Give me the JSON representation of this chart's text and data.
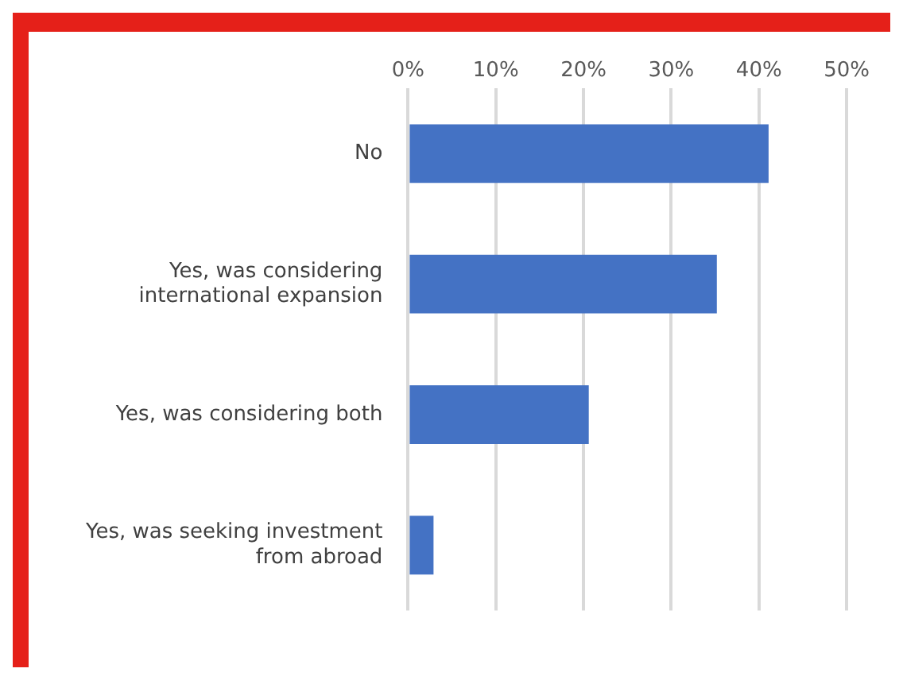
{
  "chart_data": {
    "type": "bar",
    "orientation": "horizontal",
    "categories": [
      "No",
      "Yes, was considering international expansion",
      "Yes, was considering both",
      "Yes, was seeking investment from abroad"
    ],
    "values": [
      41.1,
      35.2,
      20.6,
      2.9
    ],
    "color": "#4472c4",
    "xlim": [
      0,
      50
    ],
    "xticks": [
      {
        "value": 0,
        "label": "0%"
      },
      {
        "value": 10,
        "label": "10%"
      },
      {
        "value": 20,
        "label": "20%"
      },
      {
        "value": 30,
        "label": "30%"
      },
      {
        "value": 40,
        "label": "40%"
      },
      {
        "value": 50,
        "label": "50%"
      }
    ],
    "grid": "x",
    "legend": false
  }
}
